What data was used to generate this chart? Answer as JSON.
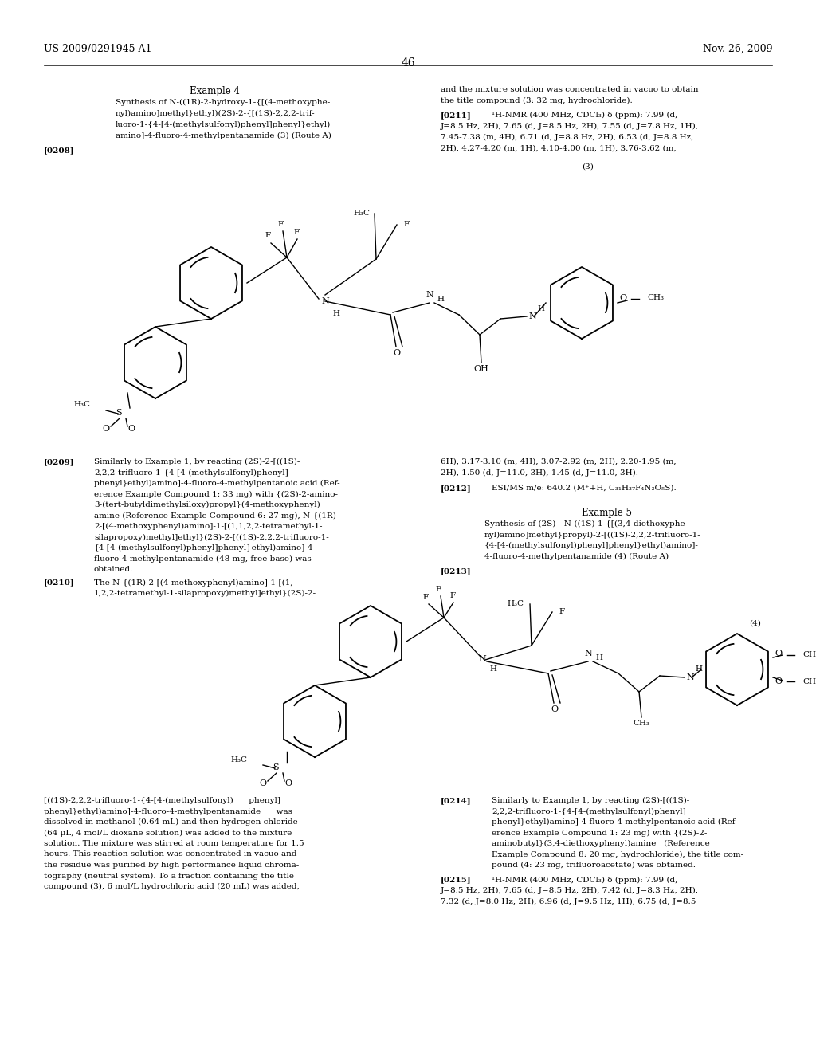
{
  "patent_number": "US 2009/0291945 A1",
  "date": "Nov. 26, 2009",
  "page_number": "46",
  "background_color": "#ffffff",
  "figsize": [
    10.24,
    13.2
  ],
  "dpi": 100
}
